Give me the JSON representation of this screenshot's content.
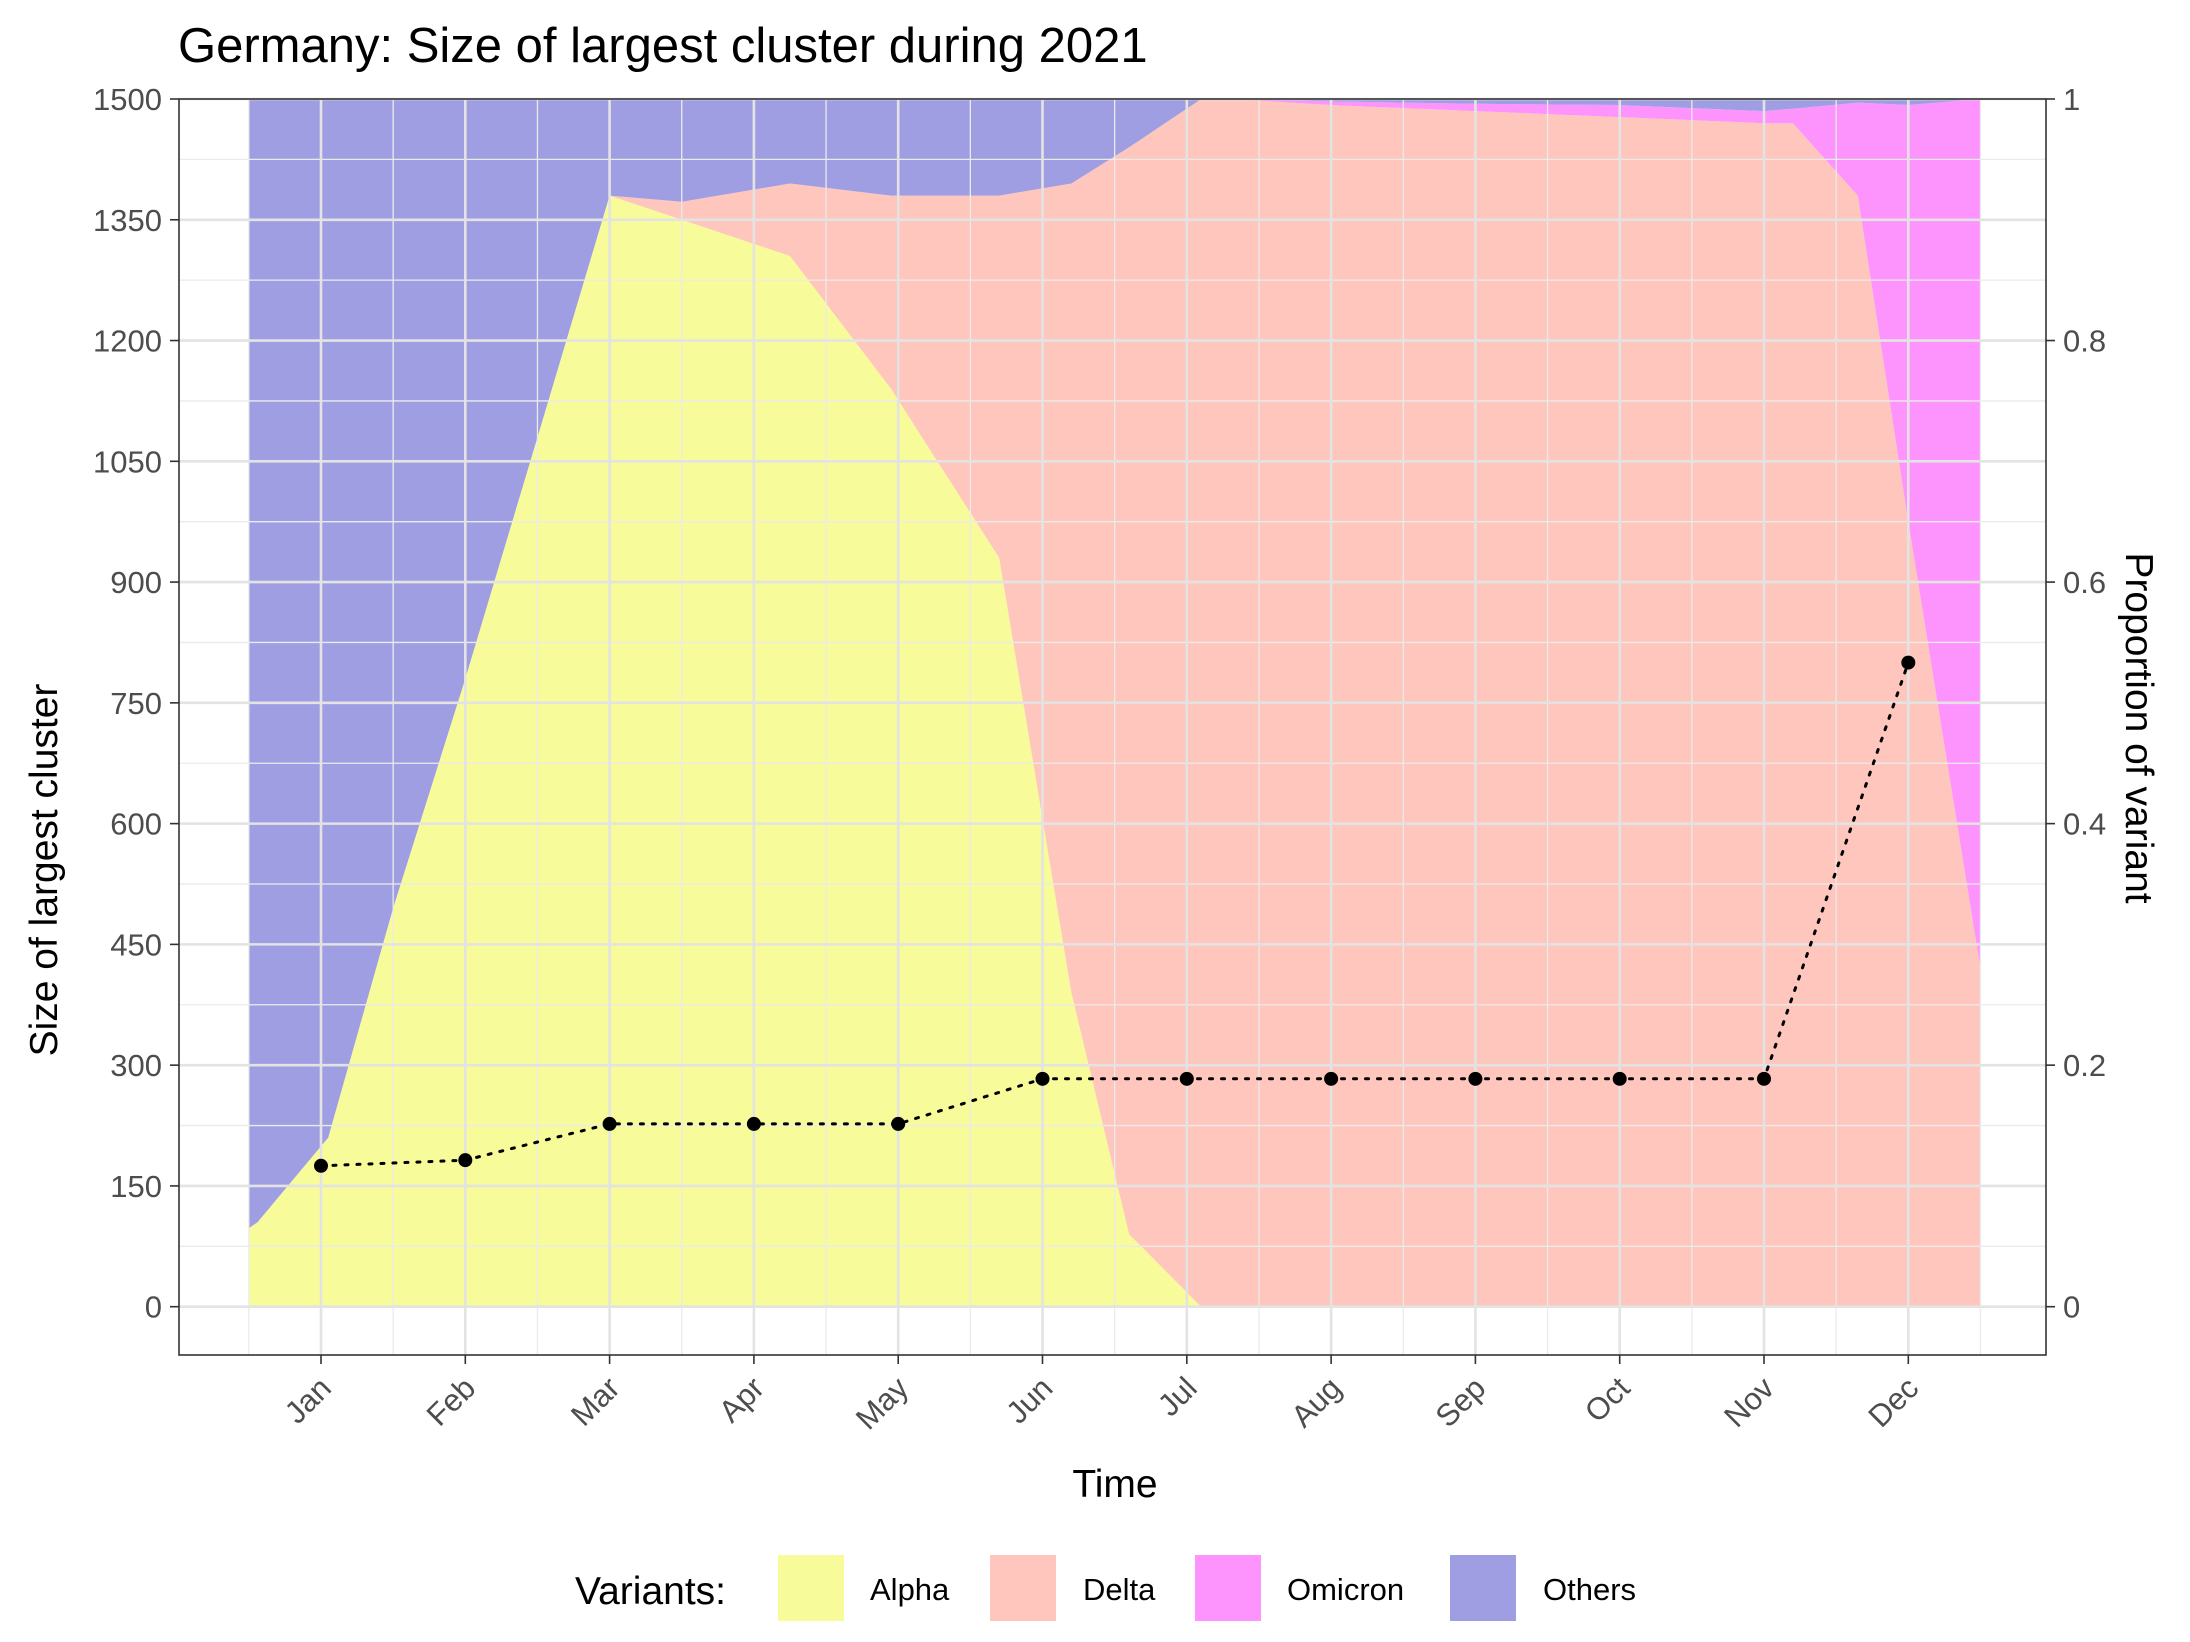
{
  "chart_data": {
    "type": "area",
    "title": "Germany: Size of largest cluster during 2021",
    "xlabel": "Time",
    "ylabel": "Size of largest cluster",
    "y2label": "Proportion of variant",
    "x_categories": [
      "Jan",
      "Feb",
      "Mar",
      "Apr",
      "May",
      "Jun",
      "Jul",
      "Aug",
      "Sep",
      "Oct",
      "Nov",
      "Dec"
    ],
    "ylim": [
      -60,
      1500
    ],
    "yticks": [
      0,
      150,
      300,
      450,
      600,
      750,
      900,
      1050,
      1200,
      1350,
      1500
    ],
    "y2lim": [
      -0.04,
      1
    ],
    "y2ticks": [
      0,
      0.2,
      0.4,
      0.6,
      0.8,
      1
    ],
    "y2tick_labels": [
      "0",
      "0.2",
      "0.4",
      "0.6",
      "0.8",
      "1"
    ],
    "grid": true,
    "legend": {
      "title": "Variants:",
      "position": "bottom",
      "entries": [
        {
          "name": "Alpha",
          "color": "#f8fb99"
        },
        {
          "name": "Delta",
          "color": "#fec6bd"
        },
        {
          "name": "Omicron",
          "color": "#fd93fc"
        },
        {
          "name": "Others",
          "color": "#9f9ee3"
        }
      ]
    },
    "stacked_proportions": {
      "x": [
        0.5,
        0.56,
        1.05,
        1.5,
        2.0,
        2.5,
        3.0,
        3.5,
        4.25,
        4.95,
        5.7,
        6.2,
        6.6,
        7.1,
        7.3,
        8.0,
        9.0,
        10.0,
        11.0,
        11.2,
        11.65,
        12.0,
        12.5
      ],
      "series": [
        {
          "name": "Alpha",
          "values": [
            0.065,
            0.07,
            0.14,
            0.33,
            0.52,
            0.72,
            0.92,
            0.9,
            0.87,
            0.76,
            0.62,
            0.26,
            0.06,
            0.0,
            0.0,
            0.0,
            0.0,
            0.0,
            0.0,
            0.0,
            0.0,
            0.0,
            0.0
          ]
        },
        {
          "name": "Delta",
          "values": [
            0.0,
            0.0,
            0.0,
            0.0,
            0.0,
            0.0,
            0.0,
            0.015,
            0.06,
            0.16,
            0.3,
            0.67,
            0.9,
            1.0,
            1.0,
            0.995,
            0.99,
            0.985,
            0.98,
            0.98,
            0.92,
            0.65,
            0.28
          ]
        },
        {
          "name": "Omicron",
          "values": [
            0.0,
            0.0,
            0.0,
            0.0,
            0.0,
            0.0,
            0.0,
            0.0,
            0.0,
            0.0,
            0.0,
            0.0,
            0.0,
            0.0,
            0.0,
            0.003,
            0.006,
            0.01,
            0.01,
            0.012,
            0.077,
            0.345,
            0.72
          ]
        },
        {
          "name": "Others",
          "values": [
            0.935,
            0.93,
            0.86,
            0.67,
            0.48,
            0.28,
            0.08,
            0.085,
            0.07,
            0.08,
            0.08,
            0.07,
            0.04,
            0.0,
            0.0,
            0.002,
            0.004,
            0.005,
            0.01,
            0.008,
            0.003,
            0.005,
            0.0
          ]
        }
      ]
    },
    "largest_cluster": {
      "name": "Size of largest cluster",
      "x": [
        "Jan",
        "Feb",
        "Mar",
        "Apr",
        "May",
        "Jun",
        "Jul",
        "Aug",
        "Sep",
        "Oct",
        "Nov",
        "Dec"
      ],
      "values": [
        175,
        182,
        227,
        227,
        227,
        283,
        283,
        283,
        283,
        283,
        283,
        800
      ]
    }
  }
}
